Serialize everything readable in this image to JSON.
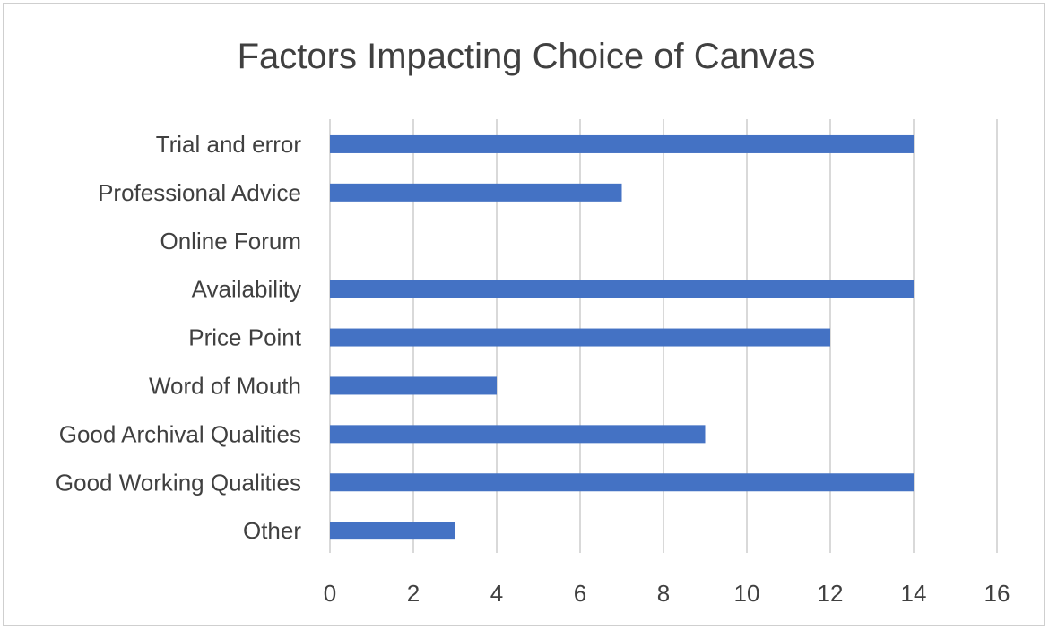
{
  "chart_data": {
    "type": "bar",
    "orientation": "horizontal",
    "title": "Factors Impacting Choice of Canvas",
    "categories": [
      "Trial and error",
      "Professional Advice",
      "Online Forum",
      "Availability",
      "Price Point",
      "Word of Mouth",
      "Good Archival Qualities",
      "Good Working Qualities",
      "Other"
    ],
    "values": [
      14,
      7,
      0,
      14,
      12,
      4,
      9,
      14,
      3
    ],
    "xlim": [
      0,
      16
    ],
    "xticks": [
      "0",
      "2",
      "4",
      "6",
      "8",
      "10",
      "12",
      "14",
      "16"
    ],
    "grid": "vertical",
    "legend": "none",
    "bar_color": "#4472C4",
    "grid_color": "#d9d9d9"
  }
}
